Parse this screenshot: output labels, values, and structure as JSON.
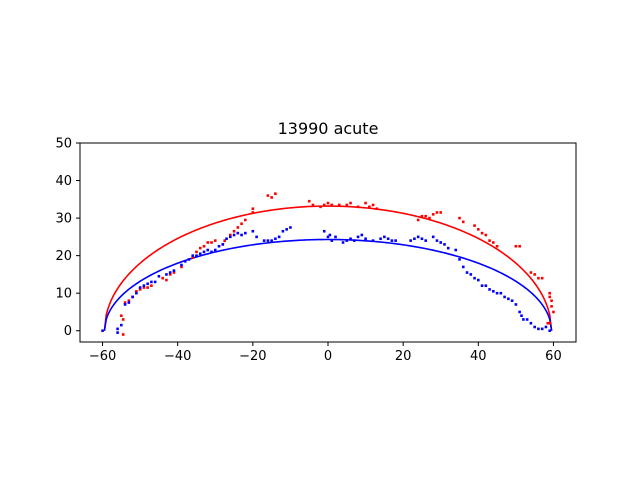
{
  "chart_data": {
    "type": "scatter",
    "title": "13990 acute",
    "xlabel": "",
    "ylabel": "",
    "xlim": [
      -66,
      66
    ],
    "ylim": [
      -3,
      50
    ],
    "xticks": [
      -60,
      -40,
      -20,
      0,
      20,
      40,
      60
    ],
    "yticks": [
      0,
      10,
      20,
      30,
      40,
      50
    ],
    "grid": false,
    "legend": "none",
    "series": [
      {
        "color": "#ff0000",
        "kind": "points",
        "points": [
          [
            -55,
            4
          ],
          [
            -54.5,
            3
          ],
          [
            -54.5,
            -1
          ],
          [
            -54,
            7.5
          ],
          [
            -53,
            8
          ],
          [
            -52,
            9
          ],
          [
            -51,
            10.5
          ],
          [
            -50,
            11
          ],
          [
            -49,
            11.5
          ],
          [
            -48,
            11.5
          ],
          [
            -47,
            12
          ],
          [
            -44,
            14
          ],
          [
            -43,
            13.5
          ],
          [
            -42,
            15
          ],
          [
            -41,
            15.5
          ],
          [
            -39,
            17
          ],
          [
            -38,
            18.5
          ],
          [
            -36,
            19.5
          ],
          [
            -35,
            21
          ],
          [
            -34,
            22
          ],
          [
            -33,
            22.5
          ],
          [
            -32,
            23.5
          ],
          [
            -31,
            23.5
          ],
          [
            -30,
            24
          ],
          [
            -28,
            23
          ],
          [
            -27.5,
            24
          ],
          [
            -26,
            25.5
          ],
          [
            -25,
            26.5
          ],
          [
            -24,
            27.5
          ],
          [
            -23,
            28.5
          ],
          [
            -22,
            29.5
          ],
          [
            -20,
            31.5
          ],
          [
            -20,
            32.5
          ],
          [
            -16,
            36
          ],
          [
            -15,
            35.5
          ],
          [
            -14,
            36.5
          ],
          [
            -5,
            34.5
          ],
          [
            -4,
            33.5
          ],
          [
            -2,
            33
          ],
          [
            -1,
            33.5
          ],
          [
            0,
            34
          ],
          [
            1,
            33.5
          ],
          [
            3,
            33.5
          ],
          [
            5,
            33.5
          ],
          [
            6,
            34
          ],
          [
            8,
            33
          ],
          [
            10,
            34
          ],
          [
            11,
            33
          ],
          [
            12,
            33.5
          ],
          [
            13,
            32.5
          ],
          [
            24,
            29.5
          ],
          [
            25,
            30.5
          ],
          [
            26,
            30.5
          ],
          [
            27,
            30
          ],
          [
            28,
            31
          ],
          [
            29,
            31.5
          ],
          [
            30,
            31.5
          ],
          [
            35,
            30
          ],
          [
            36,
            29
          ],
          [
            39,
            28
          ],
          [
            40,
            27
          ],
          [
            41,
            26
          ],
          [
            42,
            25.5
          ],
          [
            43,
            24
          ],
          [
            44,
            23.5
          ],
          [
            45,
            22.5
          ],
          [
            50,
            22.5
          ],
          [
            51,
            22.5
          ],
          [
            54,
            15.5
          ],
          [
            55,
            15
          ],
          [
            56,
            14
          ],
          [
            57,
            14
          ],
          [
            59,
            10
          ],
          [
            59,
            9
          ],
          [
            59.5,
            8
          ],
          [
            59.5,
            6.5
          ],
          [
            60,
            5
          ],
          [
            59,
            2
          ],
          [
            58.5,
            2
          ]
        ]
      },
      {
        "color": "#0000ff",
        "kind": "points",
        "points": [
          [
            -60,
            0
          ],
          [
            -56,
            0.5
          ],
          [
            -56,
            -0.5
          ],
          [
            -55,
            1.5
          ],
          [
            -54,
            7
          ],
          [
            -53,
            7.5
          ],
          [
            -52,
            9
          ],
          [
            -51,
            10
          ],
          [
            -50,
            11.5
          ],
          [
            -49,
            12
          ],
          [
            -48,
            12.5
          ],
          [
            -47,
            13
          ],
          [
            -46,
            13
          ],
          [
            -45,
            14.5
          ],
          [
            -43,
            15
          ],
          [
            -42,
            15.5
          ],
          [
            -41,
            16
          ],
          [
            -39,
            17.5
          ],
          [
            -38,
            18.5
          ],
          [
            -37,
            19
          ],
          [
            -36,
            20
          ],
          [
            -35,
            20
          ],
          [
            -34,
            20.5
          ],
          [
            -33,
            21
          ],
          [
            -32,
            21.5
          ],
          [
            -31,
            21
          ],
          [
            -30,
            21.5
          ],
          [
            -29,
            22.5
          ],
          [
            -28,
            23
          ],
          [
            -27,
            24.5
          ],
          [
            -26,
            25
          ],
          [
            -25,
            25.5
          ],
          [
            -24,
            26
          ],
          [
            -23,
            25.5
          ],
          [
            -22,
            26
          ],
          [
            -20,
            26.5
          ],
          [
            -19,
            25
          ],
          [
            -17,
            24
          ],
          [
            -16,
            24
          ],
          [
            -15,
            24
          ],
          [
            -14,
            24.5
          ],
          [
            -13,
            25
          ],
          [
            -12,
            26.5
          ],
          [
            -11,
            27
          ],
          [
            -10,
            27.5
          ],
          [
            -1,
            26.5
          ],
          [
            0,
            25
          ],
          [
            0.5,
            25.5
          ],
          [
            1,
            24
          ],
          [
            2,
            25
          ],
          [
            4,
            23.5
          ],
          [
            5,
            24
          ],
          [
            6,
            24.5
          ],
          [
            7,
            24
          ],
          [
            8,
            25
          ],
          [
            9,
            25.5
          ],
          [
            10,
            24.5
          ],
          [
            12,
            24
          ],
          [
            14,
            24.5
          ],
          [
            15,
            25
          ],
          [
            16,
            24.5
          ],
          [
            17,
            24
          ],
          [
            18,
            24
          ],
          [
            22,
            24
          ],
          [
            23,
            24.5
          ],
          [
            24,
            25
          ],
          [
            25,
            24.5
          ],
          [
            26,
            24
          ],
          [
            28,
            25
          ],
          [
            29,
            24
          ],
          [
            30,
            23.5
          ],
          [
            31,
            23
          ],
          [
            32,
            22
          ],
          [
            34,
            21.5
          ],
          [
            35,
            19
          ],
          [
            36,
            17
          ],
          [
            37,
            15.5
          ],
          [
            38,
            15
          ],
          [
            39,
            14
          ],
          [
            40,
            13.5
          ],
          [
            41,
            12
          ],
          [
            42,
            12
          ],
          [
            43,
            11
          ],
          [
            44,
            10.5
          ],
          [
            45,
            10
          ],
          [
            46,
            10
          ],
          [
            47,
            9
          ],
          [
            48,
            8.5
          ],
          [
            49,
            8
          ],
          [
            50,
            7
          ],
          [
            51,
            5
          ],
          [
            51.5,
            4
          ],
          [
            52,
            3
          ],
          [
            53,
            3
          ],
          [
            54,
            2
          ],
          [
            55,
            1
          ],
          [
            56,
            0.5
          ],
          [
            57,
            0.5
          ],
          [
            58,
            1
          ],
          [
            59,
            0
          ]
        ]
      },
      {
        "color": "#ff0000",
        "kind": "arc",
        "x_from": -59.5,
        "x_to": 59.5,
        "peak": 33.2
      },
      {
        "color": "#0000ff",
        "kind": "arc",
        "x_from": -59.5,
        "x_to": 59.5,
        "peak": 24.3
      }
    ]
  }
}
